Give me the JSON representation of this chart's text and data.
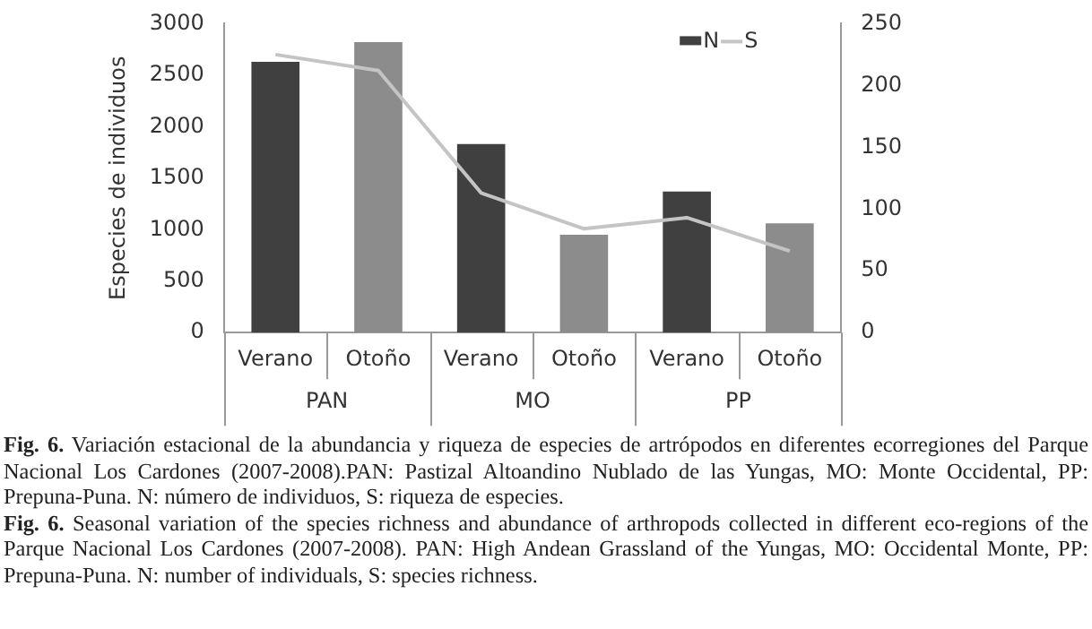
{
  "chart_data": {
    "type": "bar",
    "ylabel": "Especies de individuos",
    "categories": [
      "Verano",
      "Otoño",
      "Verano",
      "Otoño",
      "Verano",
      "Otoño"
    ],
    "series": [
      {
        "name": "N",
        "color": "#404040",
        "colors": [
          "#404040",
          "#8c8c8c",
          "#404040",
          "#8c8c8c",
          "#404040",
          "#8c8c8c"
        ],
        "values": [
          2630,
          2820,
          1830,
          950,
          1370,
          1060
        ]
      },
      {
        "name": "S",
        "type": "line",
        "axis": "y2",
        "color": "#c4c4c4",
        "values": [
          225,
          212,
          113,
          84,
          93,
          66
        ]
      }
    ],
    "ylim": [
      0,
      3000
    ],
    "yticks": [
      0,
      500,
      1000,
      1500,
      2000,
      2500,
      3000
    ],
    "y2lim": [
      0,
      250
    ],
    "y2ticks": [
      0,
      50,
      100,
      150,
      200,
      250
    ],
    "grid": false,
    "legend": "top right",
    "marker": "none",
    "annotations": [
      "PAN",
      "MO",
      "PP",
      "Fig. 6. Variación estacional de la abundancia y riqueza de especies de artrópodos en diferentes ecorregiones del Parque Nacional Los Cardones (2007-2008).PAN: Pastizal Altoandino Nublado de las Yungas, MO: Monte Occidental, PP: Prepuna-Puna. N: número de individuos, S: riqueza de especies.",
      "Fig. 6. Seasonal variation of the species richness and abundance of arthropods collected in different eco-regions of the Parque Nacional Los Cardones (2007-2008). PAN: High Andean Grassland of the Yungas, MO: Occidental Monte, PP: Prepuna-Puna. N: number of individuals, S: species richness."
    ]
  }
}
